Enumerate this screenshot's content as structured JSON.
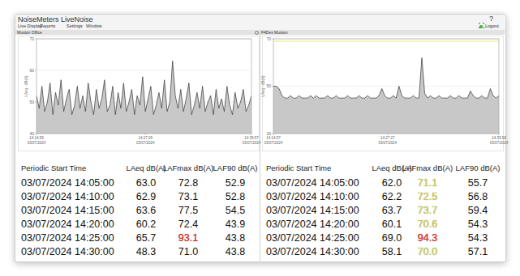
{
  "app": {
    "title": "NoiseMeters LiveNoise",
    "menu": [
      "Live Display",
      "Reports",
      "Settings",
      "Window"
    ],
    "help": "?",
    "logout": "Logout"
  },
  "panels": [
    {
      "title": "Muston Office",
      "table": {
        "header": [
          "Periodic Start Time",
          "LAeq dB(A)",
          "LAFmax dB(A)",
          "LAF90 dB(A)"
        ],
        "rows": [
          [
            "03/07/2024 14:05:00",
            "63.0",
            "72.8",
            "52.9"
          ],
          [
            "03/07/2024 14:10:00",
            "62.9",
            "73.1",
            "52.8"
          ],
          [
            "03/07/2024 14:15:00",
            "63.6",
            "77.5",
            "54.5"
          ],
          [
            "03/07/2024 14:20:00",
            "60.2",
            "72.4",
            "43.9"
          ],
          [
            "03/07/2024 14:25:00",
            "65.7",
            "93.1",
            "43.8"
          ],
          [
            "03/07/2024 14:30:00",
            "48.3",
            "71.0",
            "43.8"
          ]
        ],
        "cell_colors": [
          {
            "row": 4,
            "col": 2,
            "color": "#e02020"
          }
        ]
      }
    },
    {
      "title": "F4Dex Muston",
      "table": {
        "header": [
          "Periodic Start Time",
          "LAeq dB(A)",
          "LAFmax dB(A)",
          "LAF90 dB(A)"
        ],
        "rows": [
          [
            "03/07/2024 14:05:00",
            "62.0",
            "71.1",
            "55.7"
          ],
          [
            "03/07/2024 14:10:00",
            "62.2",
            "72.5",
            "56.8"
          ],
          [
            "03/07/2024 14:15:00",
            "63.7",
            "73.7",
            "59.4"
          ],
          [
            "03/07/2024 14:20:00",
            "60.1",
            "70.6",
            "54.3"
          ],
          [
            "03/07/2024 14:25:00",
            "69.0",
            "94.3",
            "54.3"
          ],
          [
            "03/07/2024 14:30:00",
            "58.1",
            "70.0",
            "57.1"
          ]
        ],
        "cell_colors": [
          {
            "row": 0,
            "col": 2,
            "color": "#cccc4c"
          },
          {
            "row": 1,
            "col": 2,
            "color": "#cccc4c"
          },
          {
            "row": 2,
            "col": 2,
            "color": "#cccc4c"
          },
          {
            "row": 3,
            "col": 2,
            "color": "#cccc4c"
          },
          {
            "row": 4,
            "col": 2,
            "color": "#e02020"
          },
          {
            "row": 5,
            "col": 2,
            "color": "#cccc4c"
          }
        ]
      }
    }
  ],
  "chart_data": [
    {
      "type": "area",
      "ylabel": "LAeq - dB(A)",
      "color": "#c8c8c8",
      "ylim": [
        40,
        70
      ],
      "yticks": [
        40,
        50,
        60,
        70
      ],
      "grid": true,
      "categories": [
        "14:14:59 03/07/2024",
        null,
        null,
        null,
        null,
        null,
        null,
        null,
        null,
        null,
        null,
        null,
        null,
        null,
        null,
        null,
        null,
        null,
        null,
        null,
        null,
        null,
        null,
        null,
        null,
        null,
        null,
        null,
        null,
        null,
        null,
        null,
        null,
        null,
        null,
        null,
        null,
        null,
        null,
        null,
        "14:27:26 03/07/2024",
        null,
        null,
        null,
        null,
        null,
        null,
        null,
        null,
        null,
        null,
        null,
        null,
        null,
        null,
        null,
        null,
        null,
        null,
        null,
        null,
        null,
        null,
        null,
        null,
        null,
        null,
        null,
        null,
        null,
        null,
        null,
        null,
        null,
        null,
        null,
        null,
        null,
        null,
        "14:39:57 03/07/2024"
      ],
      "values": [
        52,
        48,
        55,
        47,
        50,
        56,
        46,
        53,
        49,
        57,
        47,
        51,
        54,
        46,
        49,
        55,
        48,
        52,
        47,
        56,
        50,
        46,
        54,
        48,
        51,
        57,
        47,
        49,
        55,
        46,
        53,
        48,
        56,
        47,
        50,
        54,
        46,
        52,
        49,
        58,
        47,
        51,
        55,
        46,
        49,
        53,
        48,
        57,
        47,
        50,
        63,
        52,
        48,
        54,
        47,
        51,
        56,
        46,
        49,
        53,
        48,
        55,
        47,
        50,
        52,
        46,
        54,
        48,
        51,
        47,
        55,
        49,
        46,
        53,
        48,
        50,
        54,
        47,
        49,
        52
      ]
    },
    {
      "type": "area",
      "ylabel": "LAeq - dB(A)",
      "color": "#c8c8c8",
      "ylim": [
        30,
        70
      ],
      "yticks": [
        30,
        50,
        70
      ],
      "grid": true,
      "threshold": 69,
      "categories": [
        "14:14:57 03/07/2024",
        null,
        null,
        null,
        null,
        null,
        null,
        null,
        null,
        null,
        null,
        null,
        null,
        null,
        null,
        null,
        null,
        null,
        null,
        null,
        null,
        null,
        null,
        null,
        null,
        null,
        null,
        null,
        null,
        null,
        null,
        null,
        null,
        null,
        null,
        null,
        null,
        null,
        null,
        null,
        "14:27:27 03/07/2024",
        null,
        null,
        null,
        null,
        null,
        null,
        null,
        null,
        null,
        null,
        null,
        null,
        null,
        null,
        null,
        null,
        null,
        null,
        null,
        null,
        null,
        null,
        null,
        null,
        null,
        null,
        null,
        null,
        null,
        null,
        null,
        null,
        null,
        null,
        null,
        null,
        null,
        null,
        "14:39:58 03/07/2024"
      ],
      "values": [
        50,
        50,
        49,
        46,
        45,
        45,
        46,
        45,
        45,
        46,
        45,
        45,
        45,
        46,
        45,
        46,
        45,
        45,
        45,
        46,
        45,
        45,
        46,
        45,
        45,
        45,
        46,
        45,
        45,
        45,
        46,
        45,
        45,
        46,
        45,
        45,
        45,
        46,
        49,
        46,
        45,
        45,
        46,
        45,
        50,
        46,
        45,
        45,
        45,
        46,
        45,
        45,
        62,
        47,
        45,
        46,
        45,
        45,
        46,
        45,
        45,
        45,
        46,
        45,
        45,
        46,
        45,
        45,
        45,
        48,
        46,
        45,
        45,
        46,
        45,
        45,
        49,
        46,
        45,
        46
      ]
    }
  ]
}
